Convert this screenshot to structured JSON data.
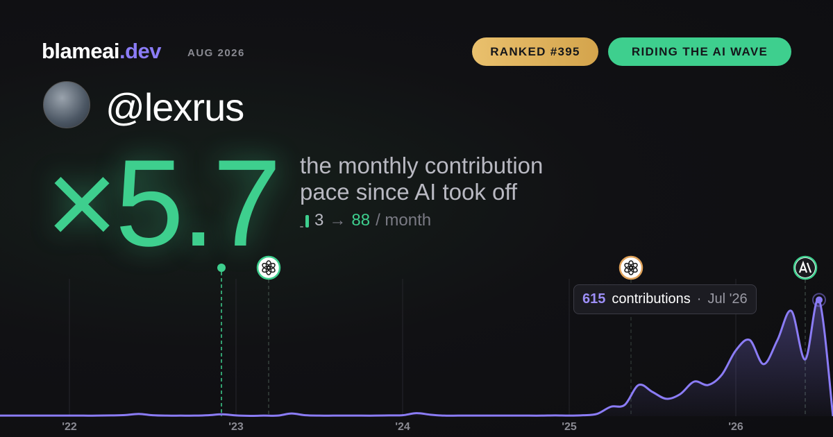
{
  "header": {
    "brand": "blameai",
    "brand_tld": ".dev",
    "date": "AUG 2026",
    "badges": [
      "RANKED #395",
      "RIDING THE AI WAVE"
    ]
  },
  "profile": {
    "handle": "@lexrus"
  },
  "headline": {
    "multiplier": "×5.7",
    "lines": [
      "the monthly contribution",
      "pace since AI took off"
    ],
    "from": "3",
    "arrow": "→",
    "to": "88",
    "unit": "/ month"
  },
  "chart_data": {
    "type": "line",
    "color": "#8b7cf6",
    "values": [
      3,
      3,
      3,
      3,
      3,
      3,
      3,
      3,
      4,
      6,
      12,
      5,
      3,
      3,
      3,
      5,
      10,
      4,
      2,
      3,
      3,
      14,
      5,
      3,
      3,
      3,
      3,
      3,
      4,
      5,
      16,
      8,
      3,
      3,
      3,
      3,
      3,
      3,
      3,
      3,
      4,
      3,
      5,
      12,
      50,
      60,
      165,
      128,
      92,
      117,
      183,
      165,
      220,
      348,
      403,
      275,
      403,
      557,
      300,
      615,
      0
    ],
    "xlim": [
      0,
      60
    ],
    "ylim": [
      0,
      700
    ],
    "xticks": [
      {
        "value": 5,
        "label": "'22"
      },
      {
        "value": 17,
        "label": "'23"
      },
      {
        "value": 29,
        "label": "'24"
      },
      {
        "value": 41,
        "label": "'25"
      },
      {
        "value": 53,
        "label": "'26"
      }
    ],
    "events": [
      15.95,
      19.35,
      45.45,
      58
    ],
    "grid": true,
    "tooltip": {
      "unit": "contributions",
      "sep": "·",
      "date": "Jul '26"
    }
  }
}
